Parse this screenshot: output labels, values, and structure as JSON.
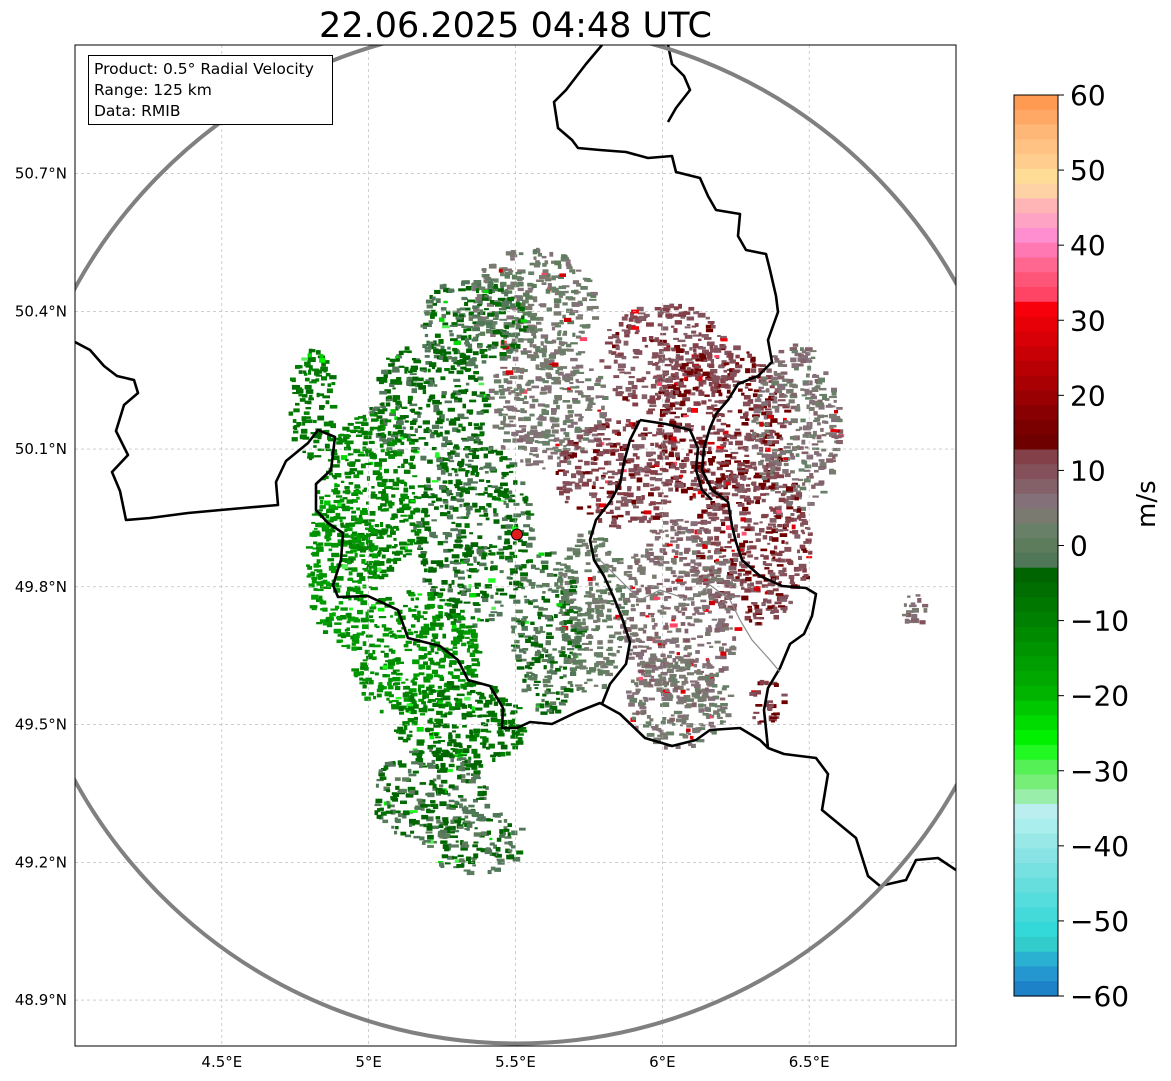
{
  "title": "22.06.2025 04:48 UTC",
  "info_box": {
    "product": "Product: 0.5° Radial Velocity",
    "range": "Range: 125 km",
    "data": "Data: RMIB"
  },
  "map": {
    "lon_range": [
      4.0,
      7.0
    ],
    "lat_range": [
      48.8,
      50.98
    ],
    "lon_ticks": [
      {
        "value": 4.5,
        "label": "4.5°E"
      },
      {
        "value": 5.0,
        "label": "5°E"
      },
      {
        "value": 5.5,
        "label": "5.5°E"
      },
      {
        "value": 6.0,
        "label": "6°E"
      },
      {
        "value": 6.5,
        "label": "6.5°E"
      }
    ],
    "lat_ticks": [
      {
        "value": 48.9,
        "label": "48.9°N"
      },
      {
        "value": 49.2,
        "label": "49.2°N"
      },
      {
        "value": 49.5,
        "label": "49.5°N"
      },
      {
        "value": 49.8,
        "label": "49.8°N"
      },
      {
        "value": 50.1,
        "label": "50.1°N"
      },
      {
        "value": 50.4,
        "label": "50.4°N"
      },
      {
        "value": 50.7,
        "label": "50.7°N"
      }
    ],
    "grid": true,
    "radar_site": {
      "lon": 5.505,
      "lat": 49.914,
      "color": "#e31a1c"
    },
    "range_ring_color": "#808080",
    "border_color": "#000000"
  },
  "colorbar": {
    "label": "m/s",
    "min": -60,
    "max": 60,
    "tick_labels": [
      "60",
      "50",
      "40",
      "30",
      "20",
      "10",
      "0",
      "−10",
      "−20",
      "−30",
      "−40",
      "−50",
      "−60"
    ],
    "colors_top_to_bottom": [
      "#ff9a52",
      "#ffa865",
      "#ffb777",
      "#ffc283",
      "#ffcd8e",
      "#ffdd96",
      "#ffd2a6",
      "#ffb5b5",
      "#ffa3c4",
      "#ff8ed1",
      "#ff78b2",
      "#ff6690",
      "#ff5577",
      "#ff4466",
      "#f8000b",
      "#e80008",
      "#d80006",
      "#c80005",
      "#b80004",
      "#a80003",
      "#980002",
      "#880001",
      "#7a0000",
      "#6e0000",
      "#844048",
      "#84505a",
      "#846068",
      "#847078",
      "#7a7a70",
      "#688068",
      "#5c7c5c",
      "#507858",
      "#006400",
      "#006e00",
      "#007800",
      "#008000",
      "#008a00",
      "#009400",
      "#009e00",
      "#00a800",
      "#00b400",
      "#00c800",
      "#00dc00",
      "#00f000",
      "#22f822",
      "#55f055",
      "#77ee77",
      "#99eeaa",
      "#bbeeee",
      "#aaeeee",
      "#99e8e8",
      "#88e4e4",
      "#77e0e0",
      "#66dede",
      "#55dcdc",
      "#44dada",
      "#33d8d8",
      "#33cccc",
      "#2ab0d0",
      "#2496d0",
      "#1e82c8"
    ]
  },
  "velocity_clusters": [
    {
      "lon": 5.55,
      "lat": 50.42,
      "rx": 0.22,
      "ry": 0.12,
      "v": 3
    },
    {
      "lon": 5.35,
      "lat": 50.38,
      "rx": 0.18,
      "ry": 0.1,
      "v": -3
    },
    {
      "lon": 5.2,
      "lat": 50.2,
      "rx": 0.2,
      "ry": 0.14,
      "v": -4
    },
    {
      "lon": 5.6,
      "lat": 50.2,
      "rx": 0.2,
      "ry": 0.14,
      "v": 4
    },
    {
      "lon": 6.0,
      "lat": 50.3,
      "rx": 0.22,
      "ry": 0.12,
      "v": 10
    },
    {
      "lon": 6.2,
      "lat": 50.15,
      "rx": 0.22,
      "ry": 0.18,
      "v": 12
    },
    {
      "lon": 5.85,
      "lat": 50.05,
      "rx": 0.22,
      "ry": 0.12,
      "v": 11
    },
    {
      "lon": 6.45,
      "lat": 50.15,
      "rx": 0.15,
      "ry": 0.18,
      "v": 5
    },
    {
      "lon": 6.3,
      "lat": 49.9,
      "rx": 0.2,
      "ry": 0.18,
      "v": 11
    },
    {
      "lon": 6.05,
      "lat": 49.75,
      "rx": 0.2,
      "ry": 0.2,
      "v": 6
    },
    {
      "lon": 6.05,
      "lat": 49.55,
      "rx": 0.18,
      "ry": 0.1,
      "v": 4
    },
    {
      "lon": 6.35,
      "lat": 49.55,
      "rx": 0.06,
      "ry": 0.05,
      "v": 12
    },
    {
      "lon": 5.75,
      "lat": 49.75,
      "rx": 0.12,
      "ry": 0.18,
      "v": 2
    },
    {
      "lon": 5.6,
      "lat": 49.7,
      "rx": 0.12,
      "ry": 0.18,
      "v": -2
    },
    {
      "lon": 5.35,
      "lat": 49.92,
      "rx": 0.2,
      "ry": 0.2,
      "v": -4
    },
    {
      "lon": 5.0,
      "lat": 50.0,
      "rx": 0.18,
      "ry": 0.18,
      "v": -10
    },
    {
      "lon": 4.9,
      "lat": 49.85,
      "rx": 0.12,
      "ry": 0.18,
      "v": -14
    },
    {
      "lon": 5.15,
      "lat": 49.65,
      "rx": 0.22,
      "ry": 0.15,
      "v": -13
    },
    {
      "lon": 5.3,
      "lat": 49.5,
      "rx": 0.22,
      "ry": 0.1,
      "v": -7
    },
    {
      "lon": 5.2,
      "lat": 49.35,
      "rx": 0.2,
      "ry": 0.1,
      "v": -3
    },
    {
      "lon": 5.35,
      "lat": 49.25,
      "rx": 0.18,
      "ry": 0.07,
      "v": -2
    },
    {
      "lon": 4.8,
      "lat": 50.2,
      "rx": 0.08,
      "ry": 0.12,
      "v": -8
    },
    {
      "lon": 6.85,
      "lat": 49.75,
      "rx": 0.04,
      "ry": 0.04,
      "v": 6
    }
  ]
}
